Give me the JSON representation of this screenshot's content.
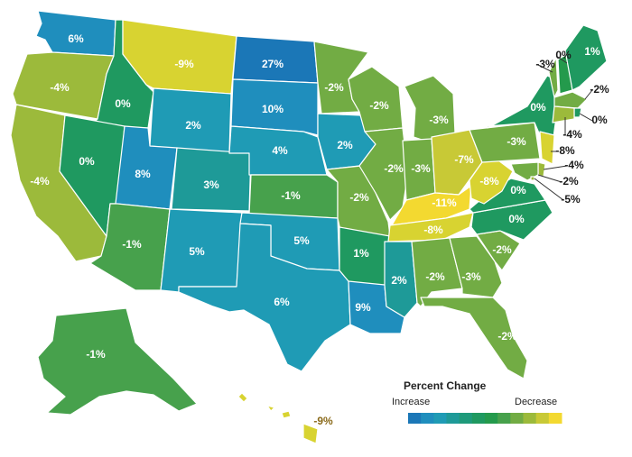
{
  "legend": {
    "title": "Percent Change",
    "left_label": "Increase",
    "right_label": "Decrease",
    "colors": [
      "#1b77b7",
      "#1f8ebd",
      "#1f9bb5",
      "#1e9a98",
      "#1e9a7a",
      "#1f9960",
      "#249a4c",
      "#47a14c",
      "#72ac44",
      "#9cba3b",
      "#c8c936",
      "#f3d930"
    ]
  },
  "states": [
    {
      "id": "WA",
      "value": "6%",
      "color": "#1f8ebd"
    },
    {
      "id": "OR",
      "value": "-4%",
      "color": "#9cba3b"
    },
    {
      "id": "CA",
      "value": "-4%",
      "color": "#9cba3b"
    },
    {
      "id": "ID",
      "value": "0%",
      "color": "#1f9960"
    },
    {
      "id": "NV",
      "value": "0%",
      "color": "#1f9960"
    },
    {
      "id": "MT",
      "value": "-9%",
      "color": "#d8d331"
    },
    {
      "id": "WY",
      "value": "2%",
      "color": "#1f9bb5"
    },
    {
      "id": "UT",
      "value": "8%",
      "color": "#1f8ebd"
    },
    {
      "id": "AZ",
      "value": "-1%",
      "color": "#47a14c"
    },
    {
      "id": "CO",
      "value": "3%",
      "color": "#1e9a98"
    },
    {
      "id": "NM",
      "value": "5%",
      "color": "#1f9bb5"
    },
    {
      "id": "ND",
      "value": "27%",
      "color": "#1b77b7"
    },
    {
      "id": "SD",
      "value": "10%",
      "color": "#1f8ebd"
    },
    {
      "id": "NE",
      "value": "4%",
      "color": "#1f9bb5"
    },
    {
      "id": "KS",
      "value": "-1%",
      "color": "#47a14c"
    },
    {
      "id": "OK",
      "value": "5%",
      "color": "#1f9bb5"
    },
    {
      "id": "TX",
      "value": "6%",
      "color": "#1f9bb5"
    },
    {
      "id": "MN",
      "value": "-2%",
      "color": "#72ac44"
    },
    {
      "id": "IA",
      "value": "2%",
      "color": "#1f9bb5"
    },
    {
      "id": "MO",
      "value": "-2%",
      "color": "#72ac44"
    },
    {
      "id": "AR",
      "value": "1%",
      "color": "#1f9960"
    },
    {
      "id": "LA",
      "value": "9%",
      "color": "#1f8ebd"
    },
    {
      "id": "WI",
      "value": "-2%",
      "color": "#72ac44"
    },
    {
      "id": "IL",
      "value": "-2%",
      "color": "#72ac44"
    },
    {
      "id": "MI",
      "value": "-3%",
      "color": "#72ac44"
    },
    {
      "id": "IN",
      "value": "-3%",
      "color": "#72ac44"
    },
    {
      "id": "OH",
      "value": "-7%",
      "color": "#c8c936"
    },
    {
      "id": "KY",
      "value": "-11%",
      "color": "#f3d930"
    },
    {
      "id": "TN",
      "value": "-8%",
      "color": "#d8d331"
    },
    {
      "id": "MS",
      "value": "2%",
      "color": "#1e9a98"
    },
    {
      "id": "AL",
      "value": "-2%",
      "color": "#72ac44"
    },
    {
      "id": "GA",
      "value": "-3%",
      "color": "#72ac44"
    },
    {
      "id": "FL",
      "value": "-2%",
      "color": "#72ac44"
    },
    {
      "id": "SC",
      "value": "-2%",
      "color": "#72ac44"
    },
    {
      "id": "NC",
      "value": "0%",
      "color": "#1f9960"
    },
    {
      "id": "VA",
      "value": "0%",
      "color": "#1f9960"
    },
    {
      "id": "WV",
      "value": "-8%",
      "color": "#d8d331"
    },
    {
      "id": "PA",
      "value": "-3%",
      "color": "#72ac44"
    },
    {
      "id": "NY",
      "value": "0%",
      "color": "#1f9960"
    },
    {
      "id": "VT",
      "value": "-3%",
      "color": "#72ac44"
    },
    {
      "id": "NH",
      "value": "0%",
      "color": "#249a4c"
    },
    {
      "id": "ME",
      "value": "1%",
      "color": "#1f9960"
    },
    {
      "id": "MA",
      "value": "-2%",
      "color": "#72ac44"
    },
    {
      "id": "RI",
      "value": "0%",
      "color": "#1f9960"
    },
    {
      "id": "CT",
      "value": "-4%",
      "color": "#9cba3b"
    },
    {
      "id": "NJ",
      "value": "-8%",
      "color": "#d8d331"
    },
    {
      "id": "DE",
      "value": "-4%",
      "color": "#9cba3b"
    },
    {
      "id": "MD",
      "value": "-2%",
      "color": "#72ac44"
    },
    {
      "id": "DC",
      "value": "-5%",
      "color": "#9cba3b"
    },
    {
      "id": "AK",
      "value": "-1%",
      "color": "#47a14c"
    },
    {
      "id": "HI",
      "value": "-9%",
      "color": "#d8d331"
    }
  ]
}
